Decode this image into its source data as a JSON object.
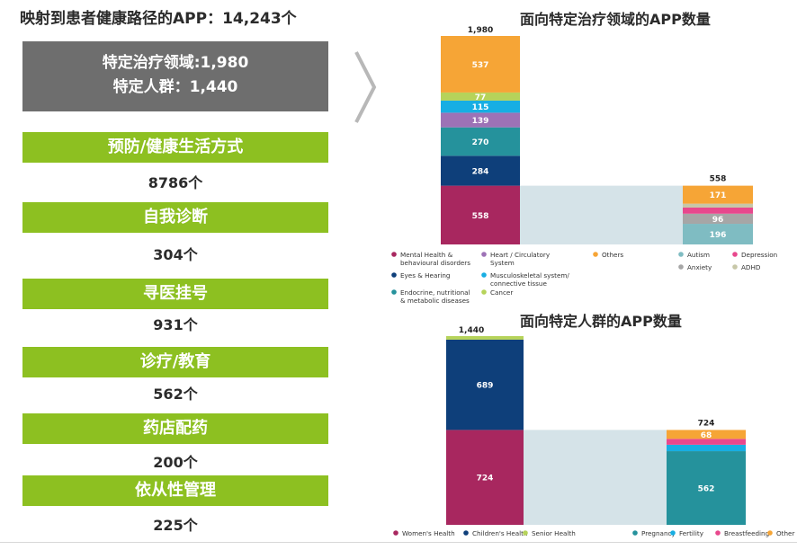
{
  "left_panel": {
    "title": "映射到患者健康路径的APP：14,243个",
    "summary": {
      "line1": "特定治疗领域:1,980",
      "line2": "特定人群：1,440"
    },
    "categories": [
      {
        "label": "预防/健康生活方式",
        "count": "8786个"
      },
      {
        "label": "自我诊断",
        "count": "304个"
      },
      {
        "label": "寻医挂号",
        "count": "931个"
      },
      {
        "label": "诊疗/教育",
        "count": "562个"
      },
      {
        "label": "药店配药",
        "count": "200个"
      },
      {
        "label": "依从性管理",
        "count": "225个"
      }
    ]
  },
  "colors": {
    "green": "#8dc021",
    "gray": "#6e6e6e",
    "connector": "#d5e3e8"
  },
  "chart_data": [
    {
      "type": "bar",
      "subtype": "stacked-bridge",
      "title": "面向特定治疗领域的APP数量",
      "left_bar": {
        "total_label": "1,980",
        "segments": [
          {
            "name": "Mental Health & behavioural disorders",
            "value": 558,
            "color": "#a8275f"
          },
          {
            "name": "Eyes & Hearing",
            "value": 284,
            "color": "#0e3f7a"
          },
          {
            "name": "Endocrine, nutritional & metabolic diseases",
            "value": 270,
            "color": "#25929c"
          },
          {
            "name": "Heart / Circulatory System",
            "value": 139,
            "color": "#9d72b6"
          },
          {
            "name": "Musculoskeletal system/ connective tissue",
            "value": 115,
            "color": "#17aee3"
          },
          {
            "name": "Cancer",
            "value": 77,
            "color": "#b6d35a"
          },
          {
            "name": "Others",
            "value": 537,
            "color": "#f6a536"
          }
        ]
      },
      "right_bar": {
        "total_label": "558",
        "segments": [
          {
            "name": "Autism",
            "value": 196,
            "color": "#7fbcc2"
          },
          {
            "name": "Anxiety",
            "value": 96,
            "color": "#a6a6a6"
          },
          {
            "name": "Depression",
            "value": 58,
            "color": "#e8488d"
          },
          {
            "name": "ADHD",
            "value": 37,
            "color": "#c7c7a8"
          },
          {
            "name": "Others",
            "value": 171,
            "color": "#f6a536"
          }
        ]
      },
      "legend_left": [
        {
          "label": "Mental Health & behavioural disorders",
          "color": "#a8275f"
        },
        {
          "label": "Heart / Circulatory System",
          "color": "#9d72b6"
        },
        {
          "label": "Others",
          "color": "#f6a536"
        },
        {
          "label": "Eyes & Hearing",
          "color": "#0e3f7a"
        },
        {
          "label": "Musculoskeletal system/ connective tissue",
          "color": "#17aee3"
        },
        {
          "label": "Endocrine, nutritional & metabolic diseases",
          "color": "#25929c"
        },
        {
          "label": "Cancer",
          "color": "#b6d35a"
        }
      ],
      "legend_right": [
        {
          "label": "Autism",
          "color": "#7fbcc2"
        },
        {
          "label": "Depression",
          "color": "#e8488d"
        },
        {
          "label": "Anxiety",
          "color": "#a6a6a6"
        },
        {
          "label": "ADHD",
          "color": "#c7c7a8"
        }
      ]
    },
    {
      "type": "bar",
      "subtype": "stacked-bridge",
      "title": "面向特定人群的APP数量",
      "left_bar": {
        "total_label": "1,440",
        "segments": [
          {
            "name": "Women's Health",
            "value": 724,
            "color": "#a8275f"
          },
          {
            "name": "Children's Health",
            "value": 689,
            "color": "#0e3f7a"
          },
          {
            "name": "Senior Health",
            "value": 27,
            "color": "#b6d35a"
          }
        ]
      },
      "right_bar": {
        "total_label": "724",
        "segments": [
          {
            "name": "Pregnancy",
            "value": 562,
            "color": "#25929c"
          },
          {
            "name": "Fertility",
            "value": 49,
            "color": "#17aee3"
          },
          {
            "name": "Breastfeeding",
            "value": 45,
            "color": "#e8488d"
          },
          {
            "name": "Other",
            "value": 68,
            "color": "#f6a536"
          }
        ]
      },
      "legend": [
        {
          "label": "Women's Health",
          "color": "#a8275f"
        },
        {
          "label": "Children's Health",
          "color": "#0e3f7a"
        },
        {
          "label": "Senior Health",
          "color": "#b6d35a"
        },
        {
          "label": "Pregnancy",
          "color": "#25929c"
        },
        {
          "label": "Fertility",
          "color": "#17aee3"
        },
        {
          "label": "Breastfeeding",
          "color": "#e8488d"
        },
        {
          "label": "Other",
          "color": "#f6a536"
        }
      ]
    }
  ]
}
